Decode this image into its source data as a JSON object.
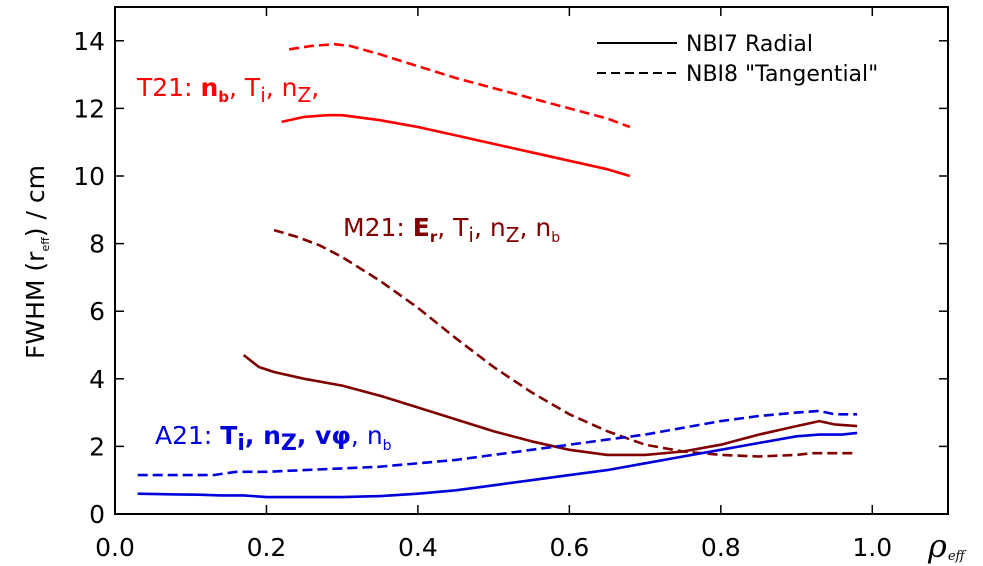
{
  "chart_data": {
    "type": "line",
    "xlabel": "ρ",
    "xlabel_sub": "eff",
    "ylabel_main": "FWHM (r",
    "ylabel_sub": "eff",
    "ylabel_tail": ") / cm",
    "xlim": [
      0.0,
      1.1
    ],
    "ylim": [
      0,
      15
    ],
    "xticks": [
      0.0,
      0.2,
      0.4,
      0.6,
      0.8,
      1.0
    ],
    "xtick_labels": [
      "0.0",
      "0.2",
      "0.4",
      "0.6",
      "0.8",
      "1.0"
    ],
    "yticks": [
      0,
      2,
      4,
      6,
      8,
      10,
      12,
      14
    ],
    "ytick_labels": [
      "0",
      "2",
      "4",
      "6",
      "8",
      "10",
      "12",
      "14"
    ],
    "grid": false,
    "legend_position": "top-right",
    "legend": [
      {
        "label": "NBI7 Radial",
        "style": "solid"
      },
      {
        "label": "NBI8 \"Tangential\"",
        "style": "dashed"
      }
    ],
    "annotations": [
      {
        "id": "t21",
        "color": "#ff0000",
        "parts": [
          {
            "text": "T21: ",
            "style": "normal"
          },
          {
            "text": "n",
            "style": "bold"
          },
          {
            "text": "b",
            "style": "bold-sub"
          },
          {
            "text": ", T",
            "style": "normal"
          },
          {
            "text": "i",
            "style": "sub"
          },
          {
            "text": ", n",
            "style": "normal"
          },
          {
            "text": "Z",
            "style": "sub"
          },
          {
            "text": ",",
            "style": "normal"
          }
        ]
      },
      {
        "id": "m21",
        "color": "#800000",
        "parts": [
          {
            "text": "M21: ",
            "style": "normal"
          },
          {
            "text": "E",
            "style": "bold"
          },
          {
            "text": "r",
            "style": "bold-sub"
          },
          {
            "text": ", T",
            "style": "normal"
          },
          {
            "text": "i",
            "style": "sub"
          },
          {
            "text": ", n",
            "style": "normal"
          },
          {
            "text": "Z",
            "style": "sub"
          },
          {
            "text": ", n",
            "style": "normal"
          },
          {
            "text": "b",
            "style": "small-sub"
          }
        ]
      },
      {
        "id": "a21",
        "color": "#0000dd",
        "parts": [
          {
            "text": "A21: ",
            "style": "normal"
          },
          {
            "text": "T",
            "style": "bold"
          },
          {
            "text": "i",
            "style": "bold-sub"
          },
          {
            "text": ", n",
            "style": "bold"
          },
          {
            "text": "Z",
            "style": "bold-sub"
          },
          {
            "text": ", vφ",
            "style": "bold"
          },
          {
            "text": ", n",
            "style": "normal"
          },
          {
            "text": "b",
            "style": "small-sub"
          }
        ]
      }
    ],
    "series": [
      {
        "group": "T21",
        "beam": "NBI7",
        "color": "#ff0000",
        "style": "solid",
        "x": [
          0.22,
          0.25,
          0.28,
          0.3,
          0.35,
          0.4,
          0.45,
          0.5,
          0.55,
          0.6,
          0.65,
          0.68
        ],
        "y": [
          11.6,
          11.75,
          11.8,
          11.8,
          11.65,
          11.45,
          11.2,
          10.95,
          10.7,
          10.45,
          10.2,
          10.0
        ]
      },
      {
        "group": "T21",
        "beam": "NBI8",
        "color": "#ff0000",
        "style": "dashed",
        "x": [
          0.23,
          0.26,
          0.29,
          0.31,
          0.35,
          0.4,
          0.45,
          0.5,
          0.55,
          0.6,
          0.65,
          0.68
        ],
        "y": [
          13.75,
          13.85,
          13.9,
          13.85,
          13.6,
          13.25,
          12.9,
          12.6,
          12.3,
          12.0,
          11.7,
          11.45
        ]
      },
      {
        "group": "M21",
        "beam": "NBI7",
        "color": "#800000",
        "style": "solid",
        "x": [
          0.17,
          0.19,
          0.21,
          0.25,
          0.3,
          0.35,
          0.4,
          0.45,
          0.5,
          0.55,
          0.6,
          0.65,
          0.7,
          0.75,
          0.8,
          0.85,
          0.9,
          0.93,
          0.95,
          0.98
        ],
        "y": [
          4.7,
          4.35,
          4.2,
          4.0,
          3.8,
          3.5,
          3.15,
          2.8,
          2.45,
          2.15,
          1.9,
          1.75,
          1.75,
          1.85,
          2.05,
          2.35,
          2.6,
          2.75,
          2.65,
          2.6
        ]
      },
      {
        "group": "M21",
        "beam": "NBI8",
        "color": "#800000",
        "style": "dashed",
        "x": [
          0.21,
          0.24,
          0.27,
          0.3,
          0.35,
          0.4,
          0.45,
          0.5,
          0.55,
          0.6,
          0.65,
          0.7,
          0.75,
          0.8,
          0.85,
          0.9,
          0.92,
          0.95,
          0.98
        ],
        "y": [
          8.4,
          8.2,
          7.95,
          7.6,
          6.9,
          6.1,
          5.2,
          4.35,
          3.6,
          2.95,
          2.45,
          2.05,
          1.85,
          1.75,
          1.7,
          1.75,
          1.8,
          1.8,
          1.8
        ]
      },
      {
        "group": "A21",
        "beam": "NBI7",
        "color": "#0000dd",
        "style": "solid",
        "x": [
          0.03,
          0.08,
          0.11,
          0.14,
          0.17,
          0.2,
          0.25,
          0.3,
          0.35,
          0.4,
          0.45,
          0.5,
          0.55,
          0.6,
          0.65,
          0.7,
          0.75,
          0.8,
          0.85,
          0.9,
          0.93,
          0.96,
          0.98
        ],
        "y": [
          0.6,
          0.58,
          0.57,
          0.55,
          0.55,
          0.5,
          0.5,
          0.5,
          0.53,
          0.6,
          0.7,
          0.85,
          1.0,
          1.15,
          1.3,
          1.5,
          1.7,
          1.9,
          2.1,
          2.3,
          2.35,
          2.35,
          2.4
        ]
      },
      {
        "group": "A21",
        "beam": "NBI8",
        "color": "#0000dd",
        "style": "dashed",
        "x": [
          0.03,
          0.08,
          0.13,
          0.16,
          0.2,
          0.25,
          0.3,
          0.35,
          0.4,
          0.45,
          0.5,
          0.55,
          0.6,
          0.65,
          0.7,
          0.75,
          0.8,
          0.85,
          0.9,
          0.93,
          0.95,
          0.98
        ],
        "y": [
          1.15,
          1.15,
          1.15,
          1.25,
          1.25,
          1.3,
          1.35,
          1.4,
          1.5,
          1.6,
          1.75,
          1.9,
          2.05,
          2.2,
          2.35,
          2.55,
          2.75,
          2.9,
          3.0,
          3.05,
          2.95,
          2.95
        ]
      }
    ]
  }
}
